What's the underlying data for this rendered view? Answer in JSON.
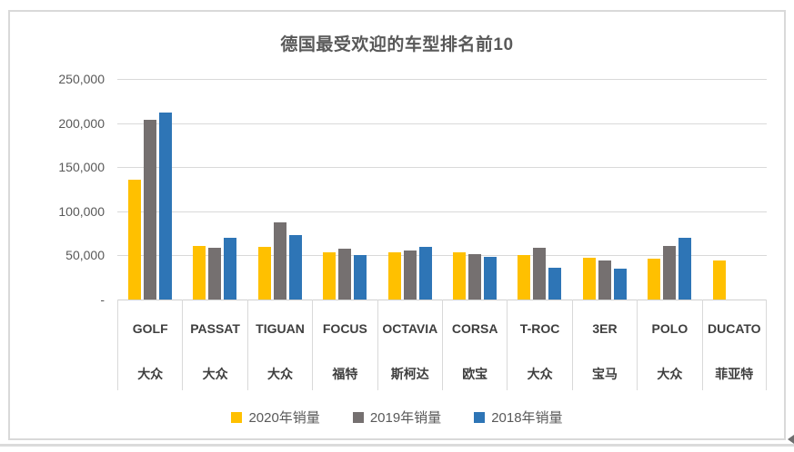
{
  "title": "德国最受欢迎的车型排名前10",
  "chart_data": {
    "type": "bar",
    "title": "德国最受欢迎的车型排名前10",
    "categories": [
      "GOLF",
      "PASSAT",
      "TIGUAN",
      "FOCUS",
      "OCTAVIA",
      "CORSA",
      "T-ROC",
      "3ER",
      "POLO",
      "DUCATO"
    ],
    "brands": [
      "大众",
      "大众",
      "大众",
      "福特",
      "斯柯达",
      "欧宝",
      "大众",
      "宝马",
      "大众",
      "菲亚特"
    ],
    "series": [
      {
        "name": "2020年销量",
        "color": "#FFC000",
        "values": [
          136000,
          61000,
          60000,
          54000,
          54000,
          53000,
          50500,
          47500,
          46500,
          44500
        ]
      },
      {
        "name": "2019年销量",
        "color": "#757070",
        "values": [
          204000,
          59000,
          87500,
          57500,
          56000,
          51500,
          59000,
          44000,
          61000,
          0
        ]
      },
      {
        "name": "2018年销量",
        "color": "#2E75B6",
        "values": [
          211500,
          70000,
          73500,
          50500,
          59500,
          48000,
          36000,
          35000,
          70000,
          0
        ]
      }
    ],
    "ylim": [
      0,
      250000
    ],
    "ytick_step": 50000,
    "ytick_labels": [
      "-",
      "50,000",
      "100,000",
      "150,000",
      "200,000",
      "250,000"
    ],
    "grid": true,
    "legend_position": "bottom",
    "xlabel": "",
    "ylabel": ""
  },
  "colors": {
    "chart_border": "#D9D9D9",
    "title_text": "#595959",
    "axis_text": "#595959",
    "category_text": "#3F3F3F"
  }
}
